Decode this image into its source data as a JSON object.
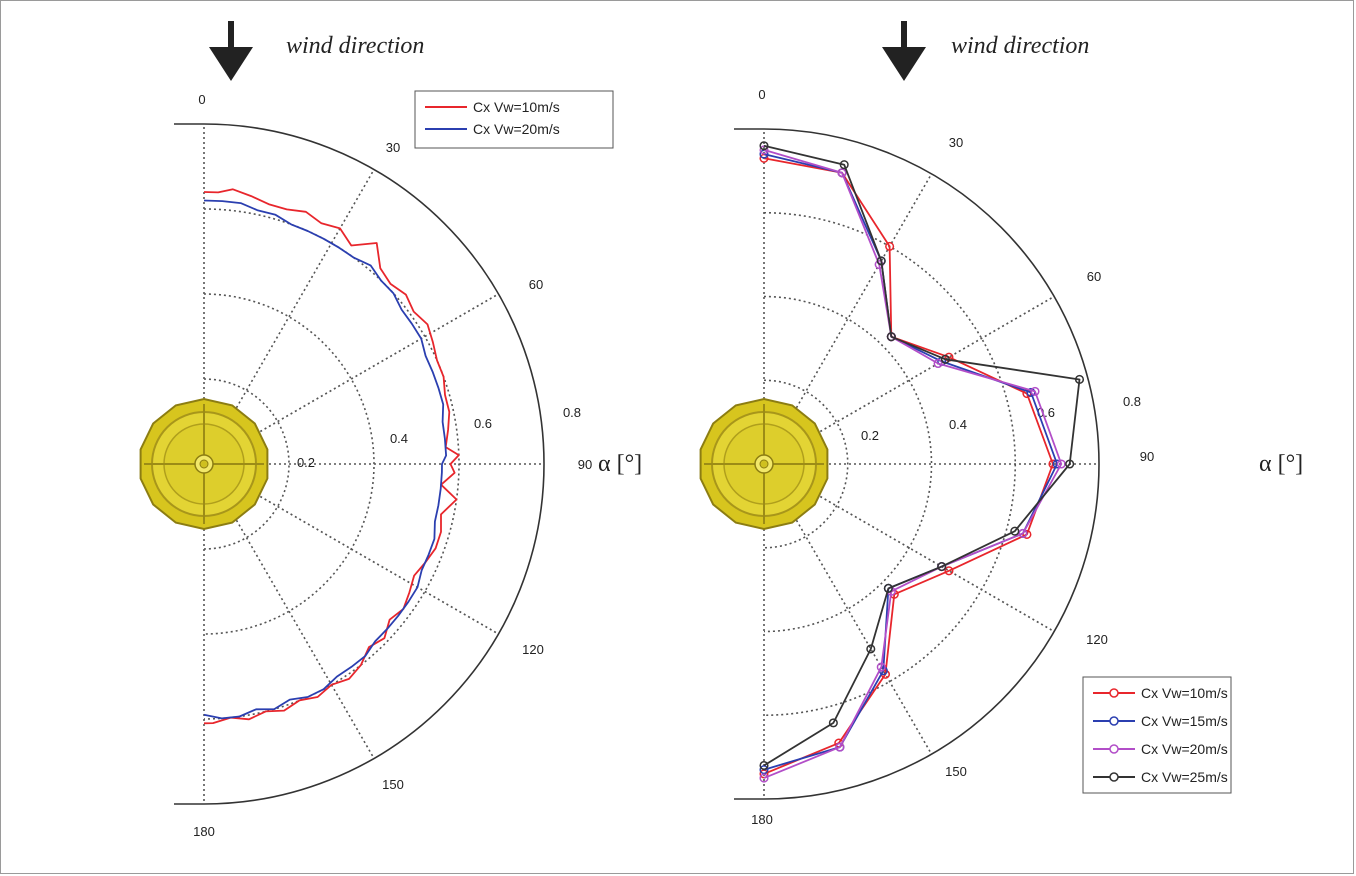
{
  "chart_data": [
    {
      "type": "line",
      "projection": "polar-half",
      "annotation": "wind direction",
      "angle_label": "α [°]",
      "angle_ticks": [
        0,
        30,
        60,
        90,
        120,
        150,
        180
      ],
      "radial_ticks": [
        "0.2",
        "0.4",
        "0.6",
        "0.8"
      ],
      "rlim": [
        0,
        0.8
      ],
      "grid": true,
      "legend_position": "top-right",
      "series": [
        {
          "name": "Cx Vw=10m/s",
          "color": "#e8262c",
          "angles": [
            0,
            3,
            6,
            10,
            14,
            18,
            22,
            26,
            30,
            34,
            38,
            42,
            46,
            50,
            54,
            58,
            62,
            66,
            70,
            74,
            78,
            82,
            86,
            88,
            90,
            92,
            95,
            98,
            102,
            106,
            110,
            114,
            118,
            122,
            126,
            130,
            134,
            138,
            142,
            146,
            150,
            154,
            158,
            162,
            166,
            170,
            174,
            178,
            180
          ],
          "r": [
            0.64,
            0.64,
            0.65,
            0.64,
            0.63,
            0.63,
            0.64,
            0.63,
            0.64,
            0.62,
            0.66,
            0.62,
            0.61,
            0.62,
            0.61,
            0.62,
            0.61,
            0.6,
            0.6,
            0.59,
            0.59,
            0.58,
            0.57,
            0.6,
            0.58,
            0.59,
            0.56,
            0.6,
            0.57,
            0.58,
            0.58,
            0.57,
            0.56,
            0.57,
            0.58,
            0.57,
            0.59,
            0.58,
            0.6,
            0.61,
            0.6,
            0.61,
            0.6,
            0.61,
            0.6,
            0.61,
            0.6,
            0.61,
            0.61
          ]
        },
        {
          "name": "Cx Vw=20m/s",
          "color": "#2b3fb0",
          "angles": [
            0,
            4,
            8,
            12,
            16,
            20,
            24,
            28,
            32,
            36,
            40,
            44,
            48,
            52,
            56,
            60,
            64,
            68,
            72,
            76,
            80,
            84,
            88,
            90,
            92,
            96,
            100,
            104,
            108,
            112,
            116,
            120,
            124,
            128,
            132,
            136,
            140,
            144,
            148,
            152,
            156,
            160,
            164,
            168,
            172,
            176,
            180
          ],
          "r": [
            0.62,
            0.62,
            0.62,
            0.61,
            0.61,
            0.6,
            0.6,
            0.6,
            0.6,
            0.6,
            0.61,
            0.6,
            0.6,
            0.59,
            0.59,
            0.59,
            0.58,
            0.58,
            0.58,
            0.58,
            0.57,
            0.57,
            0.57,
            0.56,
            0.56,
            0.56,
            0.56,
            0.56,
            0.57,
            0.57,
            0.57,
            0.58,
            0.58,
            0.58,
            0.58,
            0.58,
            0.59,
            0.59,
            0.59,
            0.6,
            0.6,
            0.59,
            0.6,
            0.59,
            0.6,
            0.6,
            0.59
          ]
        }
      ]
    },
    {
      "type": "line",
      "projection": "polar-half",
      "annotation": "wind direction",
      "angle_label": "α [°]",
      "angle_ticks": [
        0,
        30,
        60,
        90,
        120,
        150,
        180
      ],
      "radial_ticks": [
        "0.2",
        "0.4",
        "0.6",
        "0.8"
      ],
      "rlim": [
        0,
        0.8
      ],
      "grid": true,
      "legend_position": "bottom-right",
      "markers": true,
      "series": [
        {
          "name": "Cx Vw=10m/s",
          "color": "#e8262c",
          "angles": [
            0,
            15,
            30,
            45,
            60,
            75,
            90,
            105,
            120,
            135,
            150,
            165,
            180
          ],
          "r": [
            0.73,
            0.72,
            0.6,
            0.43,
            0.51,
            0.65,
            0.69,
            0.65,
            0.51,
            0.44,
            0.58,
            0.69,
            0.74
          ],
          "markers": true
        },
        {
          "name": "Cx Vw=15m/s",
          "color": "#2b3fb0",
          "angles": [
            0,
            15,
            30,
            45,
            60,
            75,
            90,
            105,
            120,
            135,
            150,
            165,
            180
          ],
          "r": [
            0.74,
            0.72,
            0.56,
            0.43,
            0.49,
            0.66,
            0.7,
            0.64,
            0.49,
            0.42,
            0.57,
            0.7,
            0.73
          ],
          "markers": true
        },
        {
          "name": "Cx Vw=20m/s",
          "color": "#b24ec8",
          "angles": [
            0,
            15,
            30,
            45,
            60,
            75,
            90,
            105,
            120,
            135,
            150,
            165,
            180
          ],
          "r": [
            0.75,
            0.72,
            0.55,
            0.43,
            0.48,
            0.67,
            0.71,
            0.64,
            0.49,
            0.43,
            0.56,
            0.7,
            0.75
          ],
          "markers": true
        },
        {
          "name": "Cx Vw=25m/s",
          "color": "#333333",
          "angles": [
            0,
            15,
            30,
            45,
            60,
            75,
            90,
            105,
            120,
            135,
            150,
            165,
            180
          ],
          "r": [
            0.76,
            0.74,
            0.56,
            0.43,
            0.5,
            0.78,
            0.73,
            0.62,
            0.49,
            0.42,
            0.51,
            0.64,
            0.72
          ],
          "markers": true
        }
      ]
    }
  ]
}
